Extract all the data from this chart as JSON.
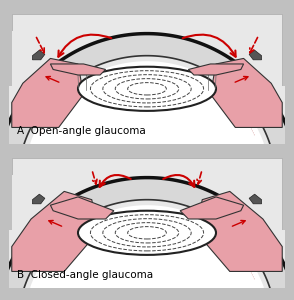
{
  "background_color": "#c0c0c0",
  "panel_bg": "#f0f0f0",
  "sclera_color": "#e8e8e8",
  "sclera_edge": "#1a1a1a",
  "iris_pink": "#e8a0a8",
  "iris_dark_edge": "#333333",
  "lens_fill": "#f8f8f8",
  "lens_edge": "#222222",
  "arrow_color": "#cc0000",
  "label_A": "A  Open-angle glaucoma",
  "label_B": "B  Closed-angle glaucoma",
  "label_fontsize": 7.5,
  "ciliary_pink": "#dda0a8"
}
